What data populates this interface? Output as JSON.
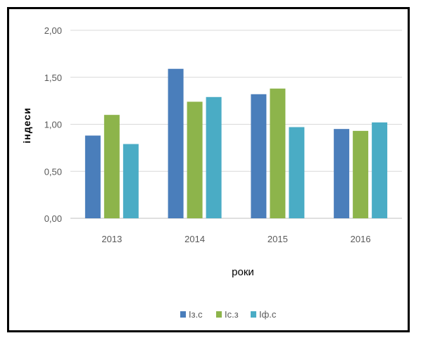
{
  "chart_data": {
    "type": "bar",
    "categories": [
      "2013",
      "2014",
      "2015",
      "2016"
    ],
    "series": [
      {
        "name": "Із.с",
        "values": [
          0.88,
          1.59,
          1.32,
          0.95
        ],
        "color": "#4a7ebb"
      },
      {
        "name": "Іс.з",
        "values": [
          1.1,
          1.24,
          1.38,
          0.93
        ],
        "color": "#8db44b"
      },
      {
        "name": "Іф.с",
        "values": [
          0.79,
          1.29,
          0.97,
          1.02
        ],
        "color": "#4aacc5"
      }
    ],
    "y_ticks": [
      "0,00",
      "0,50",
      "1,00",
      "1,50",
      "2,00"
    ],
    "ylim": [
      0,
      2
    ],
    "xlabel": "роки",
    "ylabel": "індеси",
    "grid": true,
    "legend_position": "bottom"
  }
}
